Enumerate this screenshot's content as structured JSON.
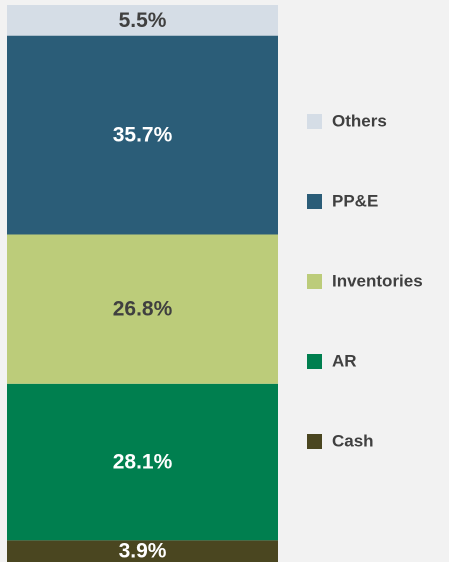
{
  "chart_data": {
    "type": "stacked_bar",
    "series": [
      {
        "name": "Cash",
        "color": "#4a4620",
        "values": [
          3.9
        ],
        "value_labels": [
          "3.9%"
        ]
      },
      {
        "name": "AR",
        "color": "#007f4f",
        "values": [
          28.1
        ],
        "value_labels": [
          "28.1%"
        ]
      },
      {
        "name": "Inventories",
        "color": "#bccc7a",
        "values": [
          26.8
        ],
        "value_labels": [
          "26.8%"
        ]
      },
      {
        "name": "PP&E",
        "color": "#2b5d78",
        "values": [
          35.7
        ],
        "value_labels": [
          "35.7%"
        ]
      },
      {
        "name": "Others",
        "color": "#d5dde6",
        "values": [
          5.5
        ],
        "value_labels": [
          "5.5%"
        ]
      }
    ],
    "ylim": [
      0,
      100
    ]
  }
}
